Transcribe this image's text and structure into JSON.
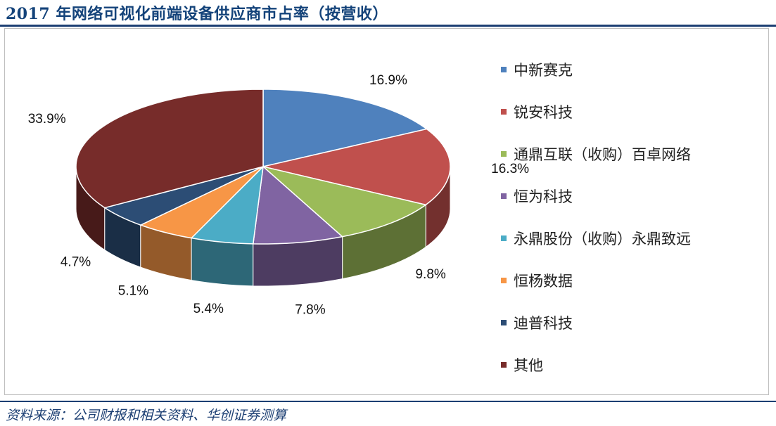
{
  "title": "2017 年网络可视化前端设备供应商市占率（按营收）",
  "source": "资料来源：公司财报和相关资料、华创证券测算",
  "chart_data": {
    "type": "pie",
    "title": "2017 年网络可视化前端设备供应商市占率（按营收）",
    "legend_position": "right",
    "categories": [
      "中新赛克",
      "锐安科技",
      "通鼎互联（收购）百卓网络",
      "恒为科技",
      "永鼎股份（收购）永鼎致远",
      "恒杨数据",
      "迪普科技",
      "其他"
    ],
    "values": [
      16.9,
      16.3,
      9.8,
      7.8,
      5.4,
      5.1,
      4.7,
      33.9
    ],
    "data_labels": [
      "16.9%",
      "16.3%",
      "9.8%",
      "7.8%",
      "5.4%",
      "5.1%",
      "4.7%",
      "33.9%"
    ],
    "colors": [
      "#4f81bd",
      "#c0504d",
      "#9bbb59",
      "#8064a2",
      "#4bacc6",
      "#f79646",
      "#2c4d75",
      "#772c2a"
    ]
  }
}
